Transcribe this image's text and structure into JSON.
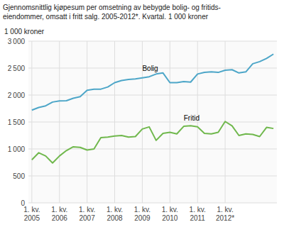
{
  "chart_data": {
    "type": "line",
    "title": "Gjennomsnittlig kjøpesum per omsetning av bebygde bolig- og fritids-\neiendommer, omsatt i fritt salg. 2005-2012*. Kvartal. 1 000 kroner",
    "y_label": "1 000 kroner",
    "categories": [
      "1. kv.\n2005",
      null,
      null,
      null,
      "1. kv.\n2006",
      null,
      null,
      null,
      "1. kv.\n2007",
      null,
      null,
      null,
      "1. kv.\n2008",
      null,
      null,
      null,
      "1. kv.\n2009",
      null,
      null,
      null,
      "1. kv.\n2010",
      null,
      null,
      null,
      "1. kv.\n2011",
      null,
      null,
      null,
      "1. kv.\n2012*",
      null,
      null,
      null,
      null,
      null,
      null,
      null
    ],
    "series": [
      {
        "name": "Bolig",
        "color": "#4da6c8",
        "values": [
          1720,
          1770,
          1800,
          1870,
          1890,
          1895,
          1940,
          1970,
          2090,
          2110,
          2110,
          2150,
          2230,
          2270,
          2290,
          2300,
          2320,
          2340,
          2390,
          2410,
          2230,
          2230,
          2250,
          2240,
          2390,
          2420,
          2430,
          2420,
          2460,
          2470,
          2410,
          2430,
          2580,
          2620,
          2680,
          2760
        ]
      },
      {
        "name": "Fritid",
        "color": "#70b84d",
        "values": [
          800,
          930,
          870,
          740,
          870,
          970,
          1040,
          1030,
          980,
          1000,
          1210,
          1220,
          1240,
          1250,
          1220,
          1230,
          1370,
          1410,
          1160,
          1290,
          1310,
          1280,
          1420,
          1430,
          1410,
          1290,
          1280,
          1310,
          1510,
          1430,
          1250,
          1280,
          1270,
          1230,
          1400,
          1380
        ]
      }
    ],
    "annotations": [
      {
        "text": "Bolig",
        "x": 16,
        "y": 2450
      },
      {
        "text": "Fritid",
        "x": 22,
        "y": 1530
      }
    ],
    "ylim": [
      0,
      3000
    ],
    "yticks": [
      0,
      500,
      {
        "value": 1000,
        "label": "1 000"
      },
      {
        "value": 1500,
        "label": "1 500"
      },
      {
        "value": 2000,
        "label": "2 000"
      },
      {
        "value": 2500,
        "label": "2 500"
      },
      {
        "value": 3000,
        "label": "3 000"
      }
    ],
    "grid": true
  }
}
